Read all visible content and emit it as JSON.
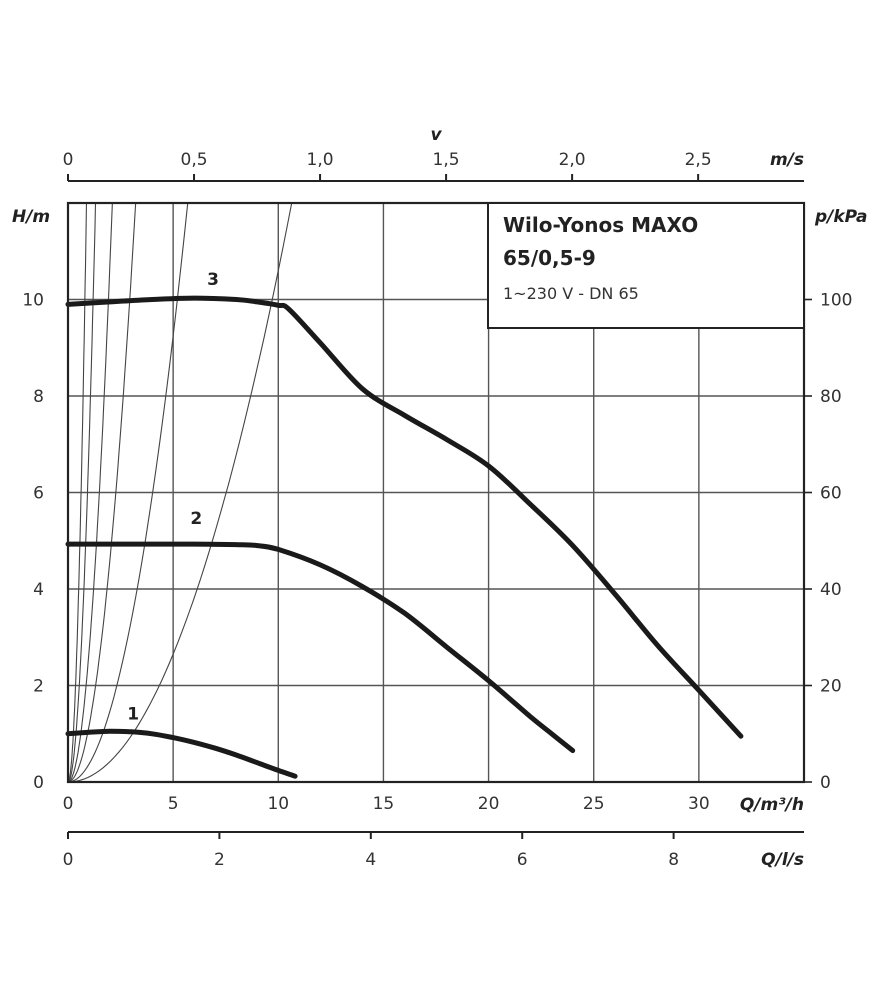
{
  "chart_data": {
    "type": "line",
    "title": "Wilo-Yonos MAXO",
    "subtitle": "65/0,5-9",
    "caption": "1~230 V - DN 65",
    "xlabel": "Q/m³/h",
    "ylabel": "H/m",
    "ylabel_right": "p/kPa",
    "xlabel_top_symbol": "v",
    "xlabel_top": "m/s",
    "xlabel_bottom": "Q/l/s",
    "xlim": [
      0,
      35
    ],
    "ylim": [
      0,
      12
    ],
    "x_ticks": [
      0,
      5,
      10,
      15,
      20,
      25,
      30
    ],
    "y_ticks": [
      0,
      2,
      4,
      6,
      8,
      10
    ],
    "y_right_ticks": [
      0,
      20,
      40,
      60,
      80,
      100
    ],
    "y_right_tick_labels": [
      "0",
      "20",
      "40",
      "60",
      "80",
      "100"
    ],
    "top_axis_ticks": [
      0,
      0.5,
      1.0,
      1.5,
      2.0,
      2.5
    ],
    "top_axis_tick_labels": [
      "0",
      "0,5",
      "1,0",
      "1,5",
      "2,0",
      "2,5"
    ],
    "bottom_axis_ticks": [
      0,
      2,
      4,
      6,
      8
    ],
    "bottom_axis_tick_labels": [
      "0",
      "2",
      "4",
      "6",
      "8"
    ],
    "grid": true,
    "series": [
      {
        "name": "1",
        "x": [
          0,
          1,
          2,
          3,
          4,
          5,
          6,
          7,
          8,
          9,
          10,
          10.8
        ],
        "y": [
          1.0,
          1.03,
          1.05,
          1.04,
          1.0,
          0.92,
          0.82,
          0.7,
          0.56,
          0.4,
          0.24,
          0.12
        ]
      },
      {
        "name": "2",
        "x": [
          0,
          2,
          4,
          6,
          8,
          9,
          10,
          12,
          14,
          16,
          18,
          20,
          22,
          23,
          24
        ],
        "y": [
          4.93,
          4.93,
          4.93,
          4.93,
          4.92,
          4.9,
          4.82,
          4.5,
          4.05,
          3.5,
          2.8,
          2.1,
          1.35,
          1.0,
          0.65
        ]
      },
      {
        "name": "3",
        "x": [
          0,
          2,
          4,
          6,
          8,
          9,
          10,
          10.5,
          12,
          14,
          16,
          18,
          20,
          22,
          24,
          26,
          28,
          30,
          32
        ],
        "y": [
          9.9,
          9.95,
          10.0,
          10.03,
          10.0,
          9.95,
          9.88,
          9.8,
          9.1,
          8.15,
          7.6,
          7.1,
          6.55,
          5.75,
          4.9,
          3.9,
          2.85,
          1.9,
          0.95
        ]
      }
    ],
    "system_curves": [
      15.5,
      7.0,
      2.7,
      1.16,
      0.37,
      0.106
    ],
    "curve_label_x": [
      3.1,
      6.1,
      6.9
    ],
    "curve_label_y": [
      1.3,
      5.35,
      10.3
    ]
  }
}
